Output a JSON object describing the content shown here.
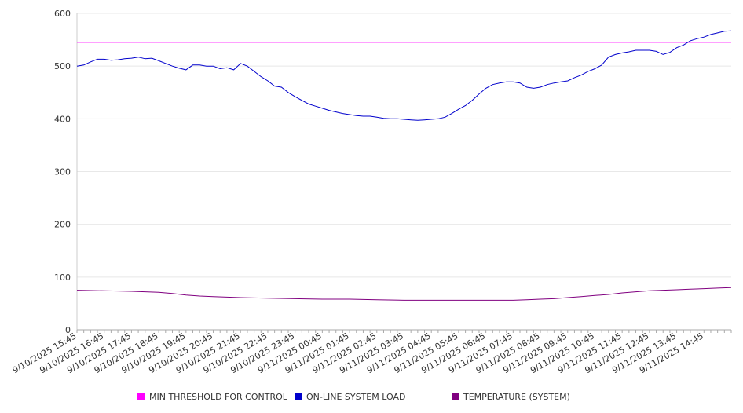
{
  "chart_data": {
    "type": "line",
    "title": "",
    "xlabel": "",
    "ylabel": "",
    "ylim": [
      0,
      600
    ],
    "y_ticks": [
      0,
      100,
      200,
      300,
      400,
      500,
      600
    ],
    "x_tick_labels": [
      "9/10/2025 15:45",
      "9/10/2025 16:45",
      "9/10/2025 17:45",
      "9/10/2025 18:45",
      "9/10/2025 19:45",
      "9/10/2025 20:45",
      "9/10/2025 21:45",
      "9/10/2025 22:45",
      "9/10/2025 23:45",
      "9/11/2025 00:45",
      "9/11/2025 01:45",
      "9/11/2025 02:45",
      "9/11/2025 03:45",
      "9/11/2025 04:45",
      "9/11/2025 05:45",
      "9/11/2025 06:45",
      "9/11/2025 07:45",
      "9/11/2025 08:45",
      "9/11/2025 09:45",
      "9/11/2025 10:45",
      "9/11/2025 11:45",
      "9/11/2025 12:45",
      "9/11/2025 13:45",
      "9/11/2025 14:45"
    ],
    "x_hours": [
      0,
      1,
      2,
      3,
      4,
      5,
      6,
      7,
      8,
      9,
      10,
      11,
      12,
      13,
      14,
      15,
      16,
      17,
      18,
      19,
      20,
      21,
      22,
      23
    ],
    "x_range_hours": [
      0,
      24
    ],
    "grid": "horizontal",
    "legend_position": "bottom",
    "series": [
      {
        "name": "MIN THRESHOLD FOR CONTROL",
        "color": "#ff00ff",
        "points": [
          [
            0,
            545
          ],
          [
            24,
            545
          ]
        ]
      },
      {
        "name": "ON-LINE SYSTEM LOAD",
        "color": "#0000cc",
        "points": [
          [
            0,
            500
          ],
          [
            0.25,
            502
          ],
          [
            0.5,
            508
          ],
          [
            0.75,
            513
          ],
          [
            1,
            513
          ],
          [
            1.25,
            511
          ],
          [
            1.5,
            512
          ],
          [
            1.75,
            514
          ],
          [
            2,
            515
          ],
          [
            2.25,
            517
          ],
          [
            2.5,
            514
          ],
          [
            2.75,
            515
          ],
          [
            3,
            510
          ],
          [
            3.25,
            505
          ],
          [
            3.5,
            500
          ],
          [
            3.75,
            496
          ],
          [
            4,
            493
          ],
          [
            4.25,
            502
          ],
          [
            4.5,
            502
          ],
          [
            4.75,
            500
          ],
          [
            5,
            500
          ],
          [
            5.25,
            495
          ],
          [
            5.5,
            497
          ],
          [
            5.75,
            493
          ],
          [
            6,
            505
          ],
          [
            6.25,
            500
          ],
          [
            6.5,
            490
          ],
          [
            6.75,
            480
          ],
          [
            7,
            472
          ],
          [
            7.25,
            462
          ],
          [
            7.5,
            460
          ],
          [
            7.75,
            450
          ],
          [
            8,
            442
          ],
          [
            8.25,
            435
          ],
          [
            8.5,
            428
          ],
          [
            8.75,
            424
          ],
          [
            9,
            420
          ],
          [
            9.25,
            416
          ],
          [
            9.5,
            413
          ],
          [
            9.75,
            410
          ],
          [
            10,
            408
          ],
          [
            10.25,
            406
          ],
          [
            10.5,
            405
          ],
          [
            10.75,
            405
          ],
          [
            11,
            403
          ],
          [
            11.25,
            401
          ],
          [
            11.5,
            400
          ],
          [
            11.75,
            400
          ],
          [
            12,
            399
          ],
          [
            12.25,
            398
          ],
          [
            12.5,
            397
          ],
          [
            12.75,
            398
          ],
          [
            13,
            399
          ],
          [
            13.25,
            400
          ],
          [
            13.5,
            403
          ],
          [
            13.75,
            410
          ],
          [
            14,
            418
          ],
          [
            14.25,
            425
          ],
          [
            14.5,
            435
          ],
          [
            14.75,
            447
          ],
          [
            15,
            458
          ],
          [
            15.25,
            465
          ],
          [
            15.5,
            468
          ],
          [
            15.75,
            470
          ],
          [
            16,
            470
          ],
          [
            16.25,
            468
          ],
          [
            16.5,
            460
          ],
          [
            16.75,
            458
          ],
          [
            17,
            460
          ],
          [
            17.25,
            465
          ],
          [
            17.5,
            468
          ],
          [
            17.75,
            470
          ],
          [
            18,
            472
          ],
          [
            18.25,
            478
          ],
          [
            18.5,
            483
          ],
          [
            18.75,
            490
          ],
          [
            19,
            495
          ],
          [
            19.25,
            502
          ],
          [
            19.5,
            517
          ],
          [
            19.75,
            522
          ],
          [
            20,
            525
          ],
          [
            20.25,
            527
          ],
          [
            20.5,
            530
          ],
          [
            20.75,
            530
          ],
          [
            21,
            530
          ],
          [
            21.25,
            528
          ],
          [
            21.5,
            522
          ],
          [
            21.75,
            526
          ],
          [
            22,
            535
          ],
          [
            22.25,
            540
          ],
          [
            22.5,
            548
          ],
          [
            22.75,
            552
          ],
          [
            23,
            555
          ],
          [
            23.25,
            560
          ],
          [
            23.5,
            563
          ],
          [
            23.75,
            566
          ],
          [
            24,
            567
          ]
        ]
      },
      {
        "name": "TEMPERATURE (SYSTEM)",
        "color": "#800080",
        "points": [
          [
            0,
            75
          ],
          [
            1,
            74
          ],
          [
            2,
            73
          ],
          [
            3,
            71
          ],
          [
            3.5,
            69
          ],
          [
            4,
            66
          ],
          [
            4.5,
            64
          ],
          [
            5,
            63
          ],
          [
            6,
            61
          ],
          [
            7,
            60
          ],
          [
            8,
            59
          ],
          [
            9,
            58
          ],
          [
            10,
            58
          ],
          [
            11,
            57
          ],
          [
            12,
            56
          ],
          [
            13,
            56
          ],
          [
            14,
            56
          ],
          [
            15,
            56
          ],
          [
            16,
            56
          ],
          [
            16.5,
            57
          ],
          [
            17,
            58
          ],
          [
            17.5,
            59
          ],
          [
            18,
            61
          ],
          [
            18.5,
            63
          ],
          [
            19,
            65
          ],
          [
            19.5,
            67
          ],
          [
            20,
            70
          ],
          [
            20.5,
            72
          ],
          [
            21,
            74
          ],
          [
            21.5,
            75
          ],
          [
            22,
            76
          ],
          [
            22.5,
            77
          ],
          [
            23,
            78
          ],
          [
            23.5,
            79
          ],
          [
            24,
            80
          ]
        ]
      }
    ]
  }
}
